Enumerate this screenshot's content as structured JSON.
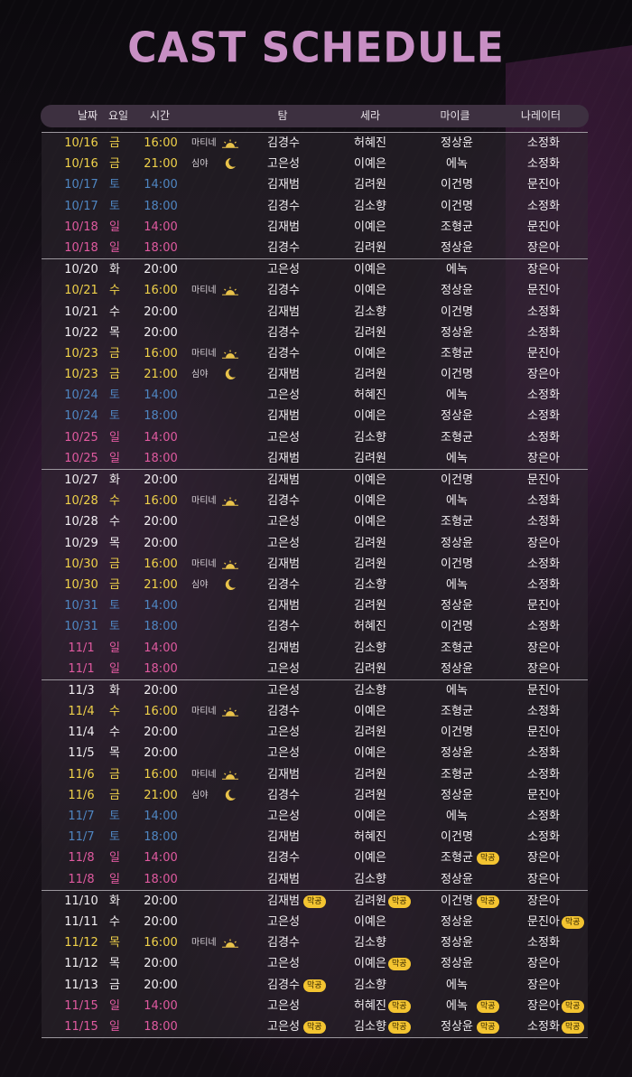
{
  "title": "CAST SCHEDULE",
  "header": {
    "date": "날짜",
    "day": "요일",
    "time": "시간",
    "tom": "탐",
    "sera": "세라",
    "michael": "마이클",
    "narrator": "나레이터"
  },
  "colors": {
    "title": "#c88fc4",
    "friday": "#f0d24a",
    "saturday": "#4f86c2",
    "sunday": "#e05aa0",
    "weekday": "#f1eef1",
    "badge": "#f3c431"
  },
  "badge_label": "막공",
  "groups": [
    [
      {
        "date": "10/16",
        "day": "금",
        "time": "16:00",
        "tag": "마티네",
        "icon": "sun-icon",
        "tom": "김경수",
        "sera": "허혜진",
        "michael": "정상윤",
        "narrator": "소정화",
        "dtype": "fri"
      },
      {
        "date": "10/16",
        "day": "금",
        "time": "21:00",
        "tag": "심야",
        "icon": "moon-icon",
        "tom": "고은성",
        "sera": "이예은",
        "michael": "에녹",
        "narrator": "소정화",
        "dtype": "fri"
      },
      {
        "date": "10/17",
        "day": "토",
        "time": "14:00",
        "tom": "김재범",
        "sera": "김려원",
        "michael": "이건명",
        "narrator": "문진아",
        "dtype": "sat"
      },
      {
        "date": "10/17",
        "day": "토",
        "time": "18:00",
        "tom": "김경수",
        "sera": "김소향",
        "michael": "이건명",
        "narrator": "소정화",
        "dtype": "sat"
      },
      {
        "date": "10/18",
        "day": "일",
        "time": "14:00",
        "tom": "김재범",
        "sera": "이예은",
        "michael": "조형균",
        "narrator": "문진아",
        "dtype": "sun"
      },
      {
        "date": "10/18",
        "day": "일",
        "time": "18:00",
        "tom": "김경수",
        "sera": "김려원",
        "michael": "정상윤",
        "narrator": "장은아",
        "dtype": "sun"
      }
    ],
    [
      {
        "date": "10/20",
        "day": "화",
        "time": "20:00",
        "tom": "고은성",
        "sera": "이예은",
        "michael": "에녹",
        "narrator": "장은아",
        "dtype": "wk"
      },
      {
        "date": "10/21",
        "day": "수",
        "time": "16:00",
        "tag": "마티네",
        "icon": "sun-icon",
        "tom": "김경수",
        "sera": "이예은",
        "michael": "정상윤",
        "narrator": "문진아",
        "dtype": "fri"
      },
      {
        "date": "10/21",
        "day": "수",
        "time": "20:00",
        "tom": "김재범",
        "sera": "김소향",
        "michael": "이건명",
        "narrator": "소정화",
        "dtype": "wk"
      },
      {
        "date": "10/22",
        "day": "목",
        "time": "20:00",
        "tom": "김경수",
        "sera": "김려원",
        "michael": "정상윤",
        "narrator": "소정화",
        "dtype": "wk"
      },
      {
        "date": "10/23",
        "day": "금",
        "time": "16:00",
        "tag": "마티네",
        "icon": "sun-icon",
        "tom": "김경수",
        "sera": "이예은",
        "michael": "조형균",
        "narrator": "문진아",
        "dtype": "fri"
      },
      {
        "date": "10/23",
        "day": "금",
        "time": "21:00",
        "tag": "심야",
        "icon": "moon-icon",
        "tom": "김재범",
        "sera": "김려원",
        "michael": "이건명",
        "narrator": "장은아",
        "dtype": "fri"
      },
      {
        "date": "10/24",
        "day": "토",
        "time": "14:00",
        "tom": "고은성",
        "sera": "허혜진",
        "michael": "에녹",
        "narrator": "소정화",
        "dtype": "sat"
      },
      {
        "date": "10/24",
        "day": "토",
        "time": "18:00",
        "tom": "김재범",
        "sera": "이예은",
        "michael": "정상윤",
        "narrator": "소정화",
        "dtype": "sat"
      },
      {
        "date": "10/25",
        "day": "일",
        "time": "14:00",
        "tom": "고은성",
        "sera": "김소향",
        "michael": "조형균",
        "narrator": "소정화",
        "dtype": "sun"
      },
      {
        "date": "10/25",
        "day": "일",
        "time": "18:00",
        "tom": "김재범",
        "sera": "김려원",
        "michael": "에녹",
        "narrator": "장은아",
        "dtype": "sun"
      }
    ],
    [
      {
        "date": "10/27",
        "day": "화",
        "time": "20:00",
        "tom": "김재범",
        "sera": "이예은",
        "michael": "이건명",
        "narrator": "문진아",
        "dtype": "wk"
      },
      {
        "date": "10/28",
        "day": "수",
        "time": "16:00",
        "tag": "마티네",
        "icon": "sun-icon",
        "tom": "김경수",
        "sera": "이예은",
        "michael": "에녹",
        "narrator": "소정화",
        "dtype": "fri"
      },
      {
        "date": "10/28",
        "day": "수",
        "time": "20:00",
        "tom": "고은성",
        "sera": "이예은",
        "michael": "조형균",
        "narrator": "소정화",
        "dtype": "wk"
      },
      {
        "date": "10/29",
        "day": "목",
        "time": "20:00",
        "tom": "고은성",
        "sera": "김려원",
        "michael": "정상윤",
        "narrator": "장은아",
        "dtype": "wk"
      },
      {
        "date": "10/30",
        "day": "금",
        "time": "16:00",
        "tag": "마티네",
        "icon": "sun-icon",
        "tom": "김재범",
        "sera": "김려원",
        "michael": "이건명",
        "narrator": "소정화",
        "dtype": "fri"
      },
      {
        "date": "10/30",
        "day": "금",
        "time": "21:00",
        "tag": "심야",
        "icon": "moon-icon",
        "tom": "김경수",
        "sera": "김소향",
        "michael": "에녹",
        "narrator": "소정화",
        "dtype": "fri"
      },
      {
        "date": "10/31",
        "day": "토",
        "time": "14:00",
        "tom": "김재범",
        "sera": "김려원",
        "michael": "정상윤",
        "narrator": "문진아",
        "dtype": "sat"
      },
      {
        "date": "10/31",
        "day": "토",
        "time": "18:00",
        "tom": "김경수",
        "sera": "허혜진",
        "michael": "이건명",
        "narrator": "소정화",
        "dtype": "sat"
      },
      {
        "date": "11/1",
        "day": "일",
        "time": "14:00",
        "tom": "김재범",
        "sera": "김소향",
        "michael": "조형균",
        "narrator": "장은아",
        "dtype": "sun"
      },
      {
        "date": "11/1",
        "day": "일",
        "time": "18:00",
        "tom": "고은성",
        "sera": "김려원",
        "michael": "정상윤",
        "narrator": "장은아",
        "dtype": "sun"
      }
    ],
    [
      {
        "date": "11/3",
        "day": "화",
        "time": "20:00",
        "tom": "고은성",
        "sera": "김소향",
        "michael": "에녹",
        "narrator": "문진아",
        "dtype": "wk"
      },
      {
        "date": "11/4",
        "day": "수",
        "time": "16:00",
        "tag": "마티네",
        "icon": "sun-icon",
        "tom": "김경수",
        "sera": "이예은",
        "michael": "조형균",
        "narrator": "소정화",
        "dtype": "fri"
      },
      {
        "date": "11/4",
        "day": "수",
        "time": "20:00",
        "tom": "고은성",
        "sera": "김려원",
        "michael": "이건명",
        "narrator": "문진아",
        "dtype": "wk"
      },
      {
        "date": "11/5",
        "day": "목",
        "time": "20:00",
        "tom": "고은성",
        "sera": "이예은",
        "michael": "정상윤",
        "narrator": "소정화",
        "dtype": "wk"
      },
      {
        "date": "11/6",
        "day": "금",
        "time": "16:00",
        "tag": "마티네",
        "icon": "sun-icon",
        "tom": "김재범",
        "sera": "김려원",
        "michael": "조형균",
        "narrator": "소정화",
        "dtype": "fri"
      },
      {
        "date": "11/6",
        "day": "금",
        "time": "21:00",
        "tag": "심야",
        "icon": "moon-icon",
        "tom": "김경수",
        "sera": "김려원",
        "michael": "정상윤",
        "narrator": "문진아",
        "dtype": "fri"
      },
      {
        "date": "11/7",
        "day": "토",
        "time": "14:00",
        "tom": "고은성",
        "sera": "이예은",
        "michael": "에녹",
        "narrator": "소정화",
        "dtype": "sat"
      },
      {
        "date": "11/7",
        "day": "토",
        "time": "18:00",
        "tom": "김재범",
        "sera": "허혜진",
        "michael": "이건명",
        "narrator": "소정화",
        "dtype": "sat"
      },
      {
        "date": "11/8",
        "day": "일",
        "time": "14:00",
        "tom": "김경수",
        "sera": "이예은",
        "michael": "조형균",
        "narrator": "장은아",
        "dtype": "sun",
        "badge_mic": true
      },
      {
        "date": "11/8",
        "day": "일",
        "time": "18:00",
        "tom": "김재범",
        "sera": "김소향",
        "michael": "정상윤",
        "narrator": "장은아",
        "dtype": "sun"
      }
    ],
    [
      {
        "date": "11/10",
        "day": "화",
        "time": "20:00",
        "tom": "김재범",
        "sera": "김려원",
        "michael": "이건명",
        "narrator": "장은아",
        "dtype": "wk",
        "badge_tom": true,
        "badge_sera": true,
        "badge_mic": true
      },
      {
        "date": "11/11",
        "day": "수",
        "time": "20:00",
        "tom": "고은성",
        "sera": "이예은",
        "michael": "정상윤",
        "narrator": "문진아",
        "dtype": "wk",
        "badge_nar": true
      },
      {
        "date": "11/12",
        "day": "목",
        "time": "16:00",
        "tag": "마티네",
        "icon": "sun-icon",
        "tom": "김경수",
        "sera": "김소향",
        "michael": "정상윤",
        "narrator": "소정화",
        "dtype": "fri"
      },
      {
        "date": "11/12",
        "day": "목",
        "time": "20:00",
        "tom": "고은성",
        "sera": "이예은",
        "michael": "정상윤",
        "narrator": "장은아",
        "dtype": "wk",
        "badge_sera": true
      },
      {
        "date": "11/13",
        "day": "금",
        "time": "20:00",
        "tom": "김경수",
        "sera": "김소향",
        "michael": "에녹",
        "narrator": "장은아",
        "dtype": "wk",
        "badge_tom": true
      },
      {
        "date": "11/15",
        "day": "일",
        "time": "14:00",
        "tom": "고은성",
        "sera": "허혜진",
        "michael": "에녹",
        "narrator": "장은아",
        "dtype": "sun",
        "badge_sera": true,
        "badge_mic": true,
        "badge_nar": true
      },
      {
        "date": "11/15",
        "day": "일",
        "time": "18:00",
        "tom": "고은성",
        "sera": "김소향",
        "michael": "정상윤",
        "narrator": "소정화",
        "dtype": "sun",
        "badge_tom": true,
        "badge_sera": true,
        "badge_mic": true,
        "badge_nar": true
      }
    ]
  ]
}
